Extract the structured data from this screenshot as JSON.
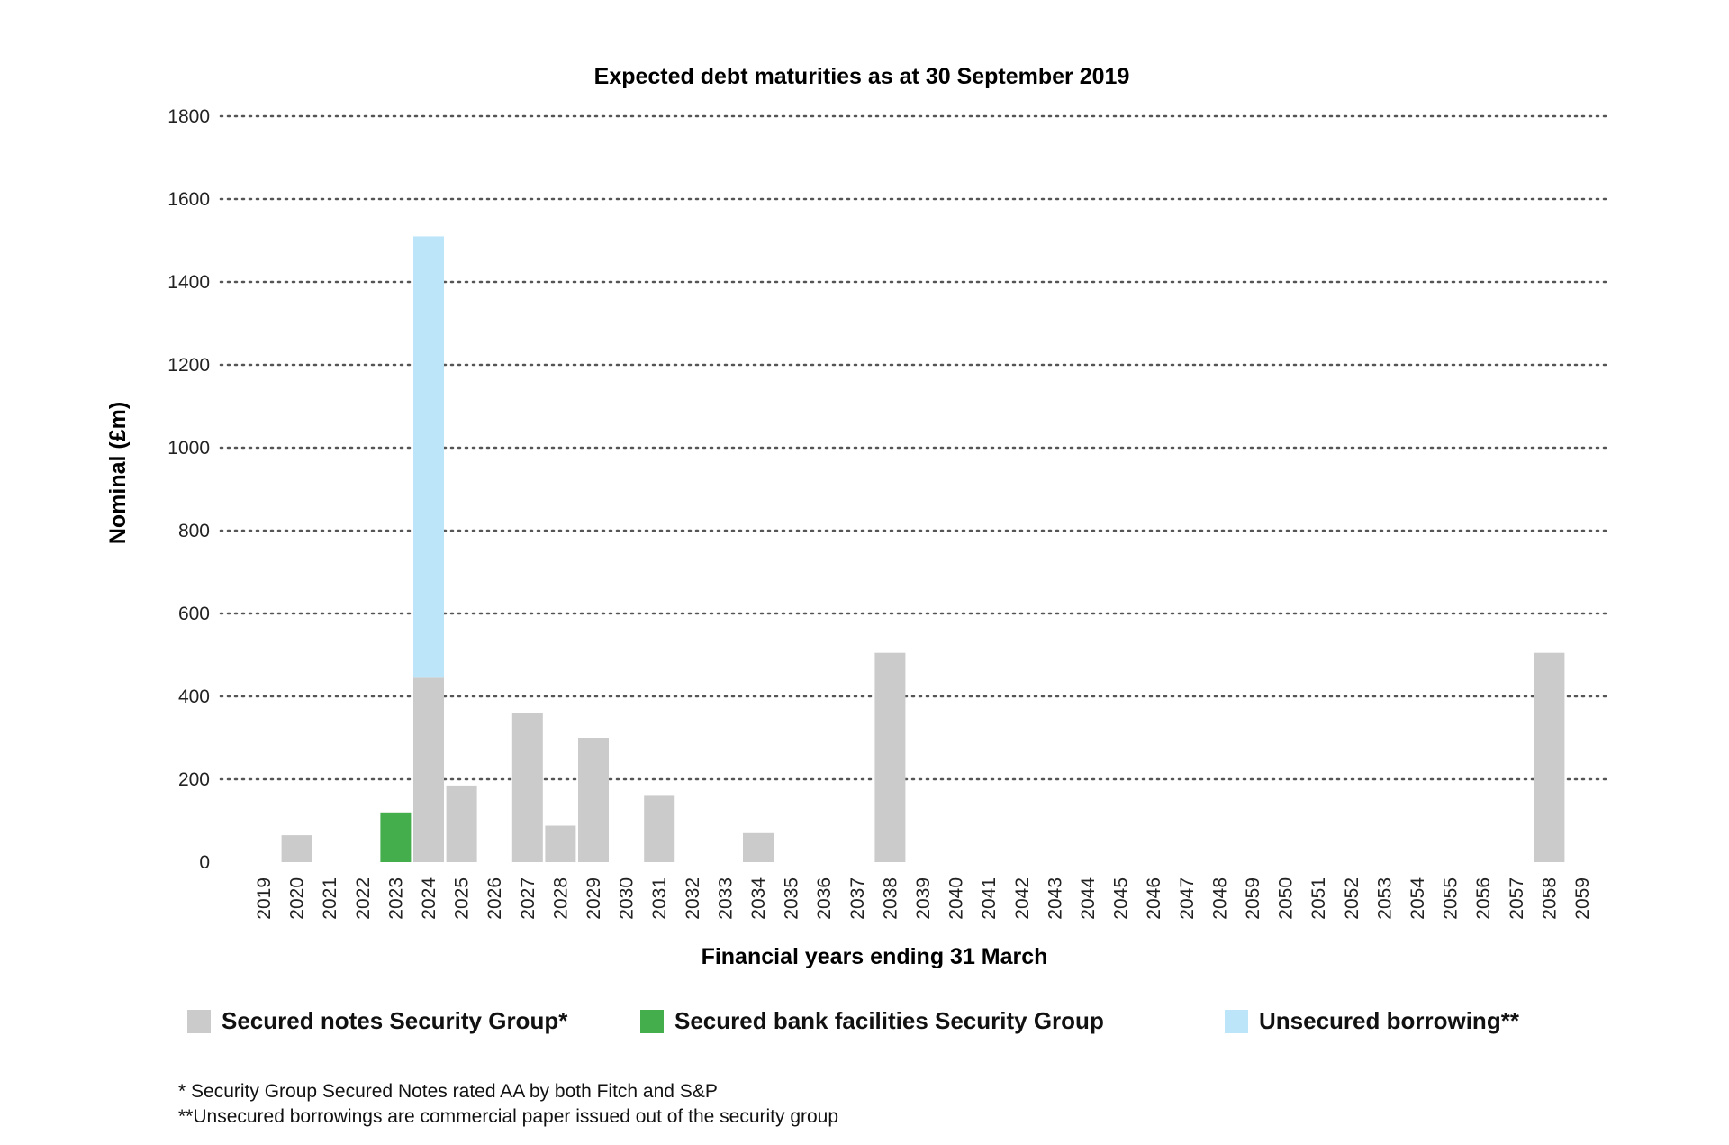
{
  "chart_data": {
    "type": "bar",
    "stacked": true,
    "title": "Expected debt maturities as at 30 September 2019",
    "xlabel": "Financial years ending 31 March",
    "ylabel": "Nominal (£m)",
    "ylim": [
      0,
      1800
    ],
    "yticks": [
      0,
      200,
      400,
      600,
      800,
      1000,
      1200,
      1400,
      1600,
      1800
    ],
    "grid": "horizontal dotted",
    "legend_position": "bottom",
    "categories": [
      "2019",
      "2020",
      "2021",
      "2022",
      "2023",
      "2024",
      "2025",
      "2026",
      "2027",
      "2028",
      "2029",
      "2030",
      "2031",
      "2032",
      "2033",
      "2034",
      "2035",
      "2036",
      "2037",
      "2038",
      "2039",
      "2040",
      "2041",
      "2042",
      "2043",
      "2044",
      "2045",
      "2046",
      "2047",
      "2048",
      "2059",
      "2050",
      "2051",
      "2052",
      "2053",
      "2054",
      "2055",
      "2056",
      "2057",
      "2058",
      "2059"
    ],
    "series": [
      {
        "name": "Secured notes Security Group*",
        "color": "#cbcbcc",
        "values": [
          0,
          65,
          0,
          0,
          0,
          445,
          185,
          0,
          360,
          88,
          300,
          0,
          160,
          0,
          0,
          70,
          0,
          0,
          0,
          505,
          0,
          0,
          0,
          0,
          0,
          0,
          0,
          0,
          0,
          0,
          0,
          0,
          0,
          0,
          0,
          0,
          0,
          0,
          0,
          505,
          0
        ]
      },
      {
        "name": "Secured bank facilities Security Group",
        "color": "#44ad4c",
        "values": [
          0,
          0,
          0,
          0,
          120,
          0,
          0,
          0,
          0,
          0,
          0,
          0,
          0,
          0,
          0,
          0,
          0,
          0,
          0,
          0,
          0,
          0,
          0,
          0,
          0,
          0,
          0,
          0,
          0,
          0,
          0,
          0,
          0,
          0,
          0,
          0,
          0,
          0,
          0,
          0,
          0
        ]
      },
      {
        "name": "Unsecured borrowing**",
        "color": "#bde5fa",
        "values": [
          0,
          0,
          0,
          0,
          0,
          1065,
          0,
          0,
          0,
          0,
          0,
          0,
          0,
          0,
          0,
          0,
          0,
          0,
          0,
          0,
          0,
          0,
          0,
          0,
          0,
          0,
          0,
          0,
          0,
          0,
          0,
          0,
          0,
          0,
          0,
          0,
          0,
          0,
          0,
          0,
          0
        ]
      }
    ]
  },
  "footnotes": [
    "* Security Group Secured Notes rated AA by both Fitch and S&P",
    "**Unsecured borrowings are commercial paper issued out of the security group"
  ]
}
